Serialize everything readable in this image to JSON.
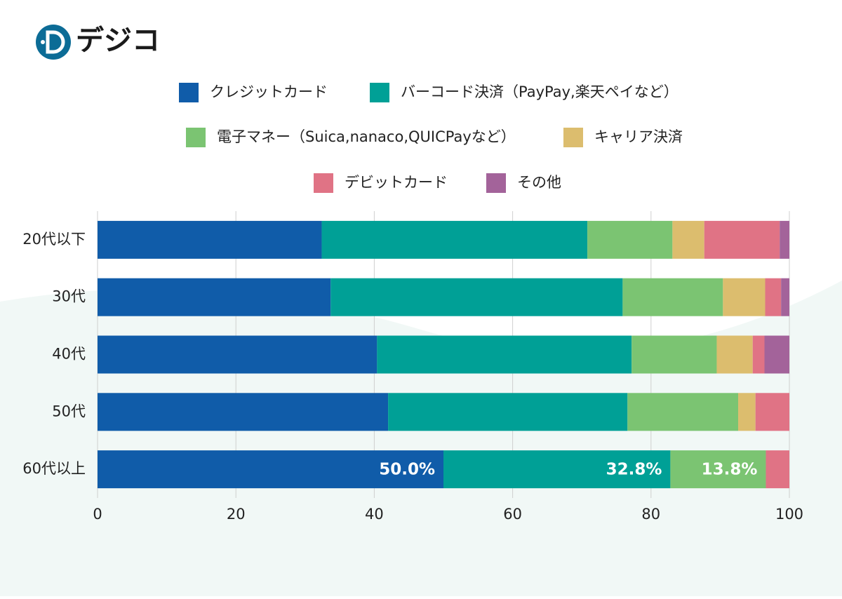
{
  "logo": "デジコ",
  "chart_data": {
    "type": "stacked-bar-horizontal",
    "categories": [
      "20代以下",
      "30代",
      "40代",
      "50代",
      "60代以上"
    ],
    "series": [
      {
        "name": "クレジットカード",
        "color": "#105ca9",
        "values": [
          32.4,
          33.7,
          40.4,
          42.0,
          50.0
        ],
        "value_labels": [
          null,
          null,
          null,
          null,
          "50.0%"
        ]
      },
      {
        "name": "バーコード決済（PayPay,楽天ペイなど）",
        "color": "#00a096",
        "values": [
          38.4,
          42.2,
          36.8,
          34.6,
          32.8
        ],
        "value_labels": [
          null,
          null,
          null,
          null,
          "32.8%"
        ]
      },
      {
        "name": "電子マネー（Suica,nanaco,QUICPayなど）",
        "color": "#7bc472",
        "values": [
          12.3,
          14.5,
          12.3,
          16.0,
          13.8
        ],
        "value_labels": [
          null,
          null,
          null,
          null,
          "13.8%"
        ]
      },
      {
        "name": "キャリア決済",
        "color": "#dcbd6e",
        "values": [
          4.6,
          6.1,
          5.2,
          2.5,
          0
        ]
      },
      {
        "name": "デビットカード",
        "color": "#e07385",
        "values": [
          10.9,
          2.3,
          1.7,
          4.9,
          3.4
        ]
      },
      {
        "name": "その他",
        "color": "#a3639a",
        "values": [
          1.4,
          1.2,
          3.6,
          0,
          0
        ]
      }
    ],
    "xlim": [
      0,
      100
    ],
    "xticks": [
      0,
      20,
      40,
      60,
      80,
      100
    ],
    "grid": true
  }
}
